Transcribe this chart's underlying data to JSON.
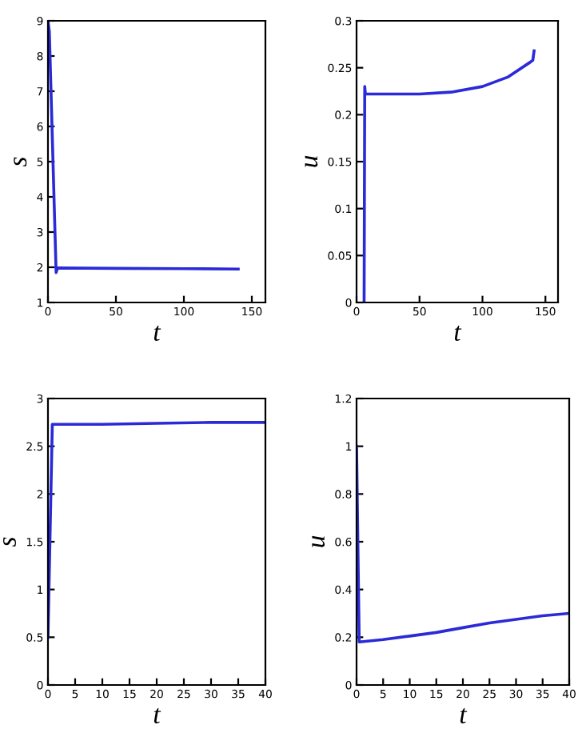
{
  "chart_data": [
    {
      "type": "line",
      "xlabel": "t",
      "ylabel": "s",
      "xlim": [
        0,
        160
      ],
      "xticks": [
        0,
        50,
        100,
        150
      ],
      "ylim": [
        1,
        9
      ],
      "yticks": [
        1,
        2,
        3,
        4,
        5,
        6,
        7,
        8,
        9
      ],
      "grid": false,
      "legend": false,
      "series": [
        {
          "color": "#2a2ad8",
          "x": [
            0,
            1,
            6,
            7,
            50,
            100,
            140
          ],
          "values": [
            9,
            8.7,
            1.85,
            1.98,
            1.97,
            1.96,
            1.95
          ]
        }
      ]
    },
    {
      "type": "line",
      "xlabel": "t",
      "ylabel": "u",
      "xlim": [
        0,
        160
      ],
      "xticks": [
        0,
        50,
        100,
        150
      ],
      "ylim": [
        0,
        0.3
      ],
      "yticks": [
        0,
        0.05,
        0.1,
        0.15,
        0.2,
        0.25,
        0.3
      ],
      "grid": false,
      "legend": false,
      "series": [
        {
          "color": "#2a2ad8",
          "x": [
            6,
            6.5,
            7,
            50,
            75,
            100,
            120,
            138,
            140,
            141
          ],
          "values": [
            0,
            0.23,
            0.222,
            0.222,
            0.224,
            0.23,
            0.24,
            0.256,
            0.258,
            0.268
          ]
        }
      ]
    },
    {
      "type": "line",
      "xlabel": "t",
      "ylabel": "s",
      "xlim": [
        0,
        40
      ],
      "xticks": [
        0,
        5,
        10,
        15,
        20,
        25,
        30,
        35,
        40
      ],
      "ylim": [
        0,
        3
      ],
      "yticks": [
        0,
        0.5,
        1,
        1.5,
        2,
        2.5,
        3
      ],
      "grid": false,
      "legend": false,
      "series": [
        {
          "color": "#2a2ad8",
          "x": [
            0,
            0.8,
            10,
            20,
            30,
            40
          ],
          "values": [
            0.5,
            2.73,
            2.73,
            2.74,
            2.75,
            2.75
          ]
        }
      ]
    },
    {
      "type": "line",
      "xlabel": "t",
      "ylabel": "u",
      "xlim": [
        0,
        40
      ],
      "xticks": [
        0,
        5,
        10,
        15,
        20,
        25,
        30,
        35,
        40
      ],
      "ylim": [
        0,
        1.2
      ],
      "yticks": [
        0,
        0.2,
        0.4,
        0.6,
        0.8,
        1,
        1.2
      ],
      "grid": false,
      "legend": false,
      "series": [
        {
          "color": "#2a2ad8",
          "x": [
            0,
            0.5,
            5,
            10,
            15,
            20,
            25,
            30,
            35,
            40
          ],
          "values": [
            1,
            0.18,
            0.19,
            0.205,
            0.22,
            0.24,
            0.26,
            0.275,
            0.29,
            0.3
          ]
        }
      ]
    }
  ]
}
